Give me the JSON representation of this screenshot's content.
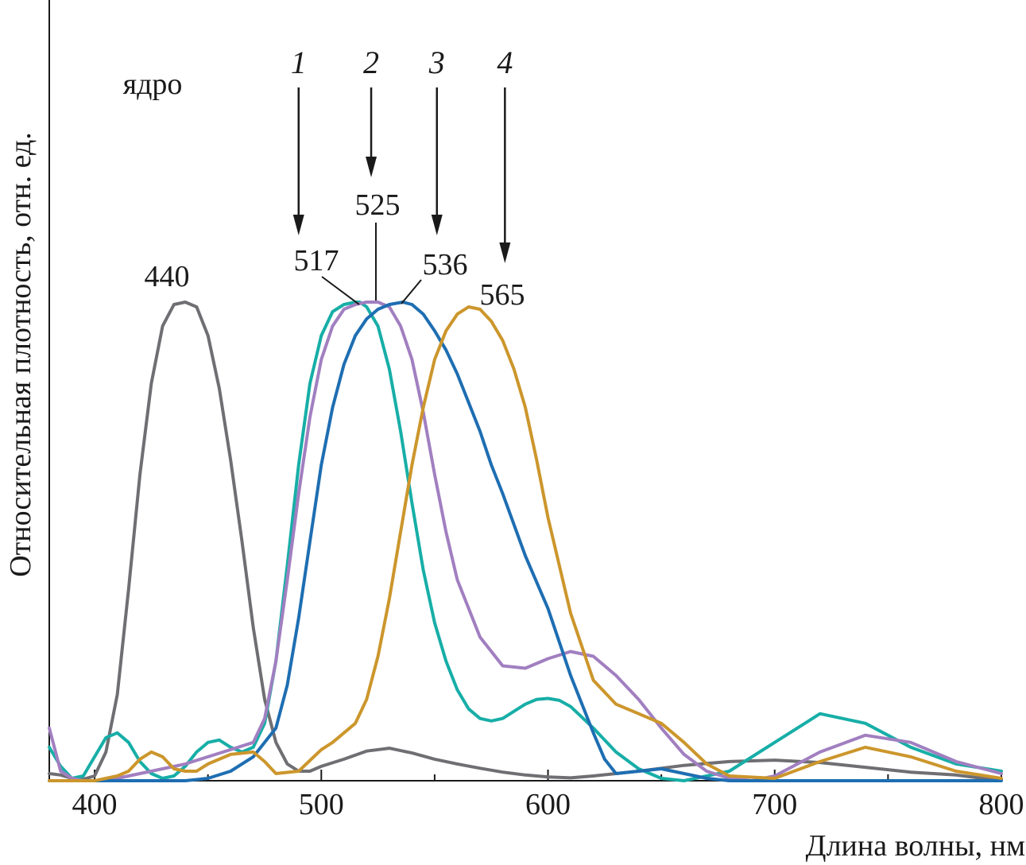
{
  "chart_data": {
    "type": "line",
    "title": "",
    "xlabel": "Длина волны, нм",
    "ylabel": "Относительная плотность, отн. ед.",
    "xlim": [
      380,
      800
    ],
    "ylim": [
      0,
      1
    ],
    "x_ticks": [
      400,
      500,
      600,
      700,
      800
    ],
    "x_tick_labels": [
      "400",
      "500",
      "600",
      "700",
      "800"
    ],
    "x_minor_step": 50,
    "y_ticks_shown": false,
    "grid": false,
    "annotations": {
      "nucleus_label": "ядро",
      "nucleus_peak": "440",
      "peaks": [
        {
          "curve": "1",
          "value": "517",
          "x": 517
        },
        {
          "curve": "2",
          "value": "525",
          "x": 525
        },
        {
          "curve": "3",
          "value": "536",
          "x": 536
        },
        {
          "curve": "4",
          "value": "565",
          "x": 565
        }
      ],
      "arrows": [
        {
          "label": "1",
          "x": 490
        },
        {
          "label": "2",
          "x": 522
        },
        {
          "label": "3",
          "x": 551
        },
        {
          "label": "4",
          "x": 581
        }
      ]
    },
    "series": [
      {
        "name": "ядро",
        "color": "#6f6f73",
        "x": [
          380,
          385,
          390,
          395,
          400,
          405,
          410,
          415,
          420,
          425,
          430,
          435,
          440,
          445,
          450,
          455,
          460,
          465,
          470,
          475,
          480,
          485,
          490,
          495,
          500,
          510,
          520,
          530,
          540,
          550,
          560,
          570,
          580,
          590,
          600,
          610,
          620,
          640,
          660,
          680,
          700,
          720,
          740,
          760,
          780,
          790,
          800
        ],
        "y": [
          0.015,
          0.012,
          0.005,
          0.003,
          0.01,
          0.06,
          0.18,
          0.4,
          0.64,
          0.83,
          0.95,
          0.995,
          1.0,
          0.99,
          0.93,
          0.82,
          0.67,
          0.5,
          0.32,
          0.17,
          0.08,
          0.035,
          0.02,
          0.02,
          0.03,
          0.045,
          0.062,
          0.068,
          0.058,
          0.045,
          0.035,
          0.026,
          0.018,
          0.012,
          0.008,
          0.006,
          0.01,
          0.02,
          0.032,
          0.04,
          0.043,
          0.038,
          0.028,
          0.018,
          0.012,
          0.006,
          0.003
        ]
      },
      {
        "name": "1",
        "color": "#17aea7",
        "x": [
          380,
          385,
          390,
          395,
          400,
          405,
          410,
          415,
          420,
          425,
          430,
          435,
          440,
          445,
          450,
          455,
          460,
          465,
          470,
          475,
          480,
          485,
          490,
          495,
          500,
          505,
          510,
          515,
          517,
          520,
          525,
          530,
          535,
          540,
          545,
          550,
          555,
          560,
          565,
          570,
          575,
          580,
          585,
          590,
          595,
          600,
          605,
          610,
          620,
          630,
          640,
          650,
          660,
          680,
          700,
          720,
          740,
          760,
          780,
          800
        ],
        "y": [
          0.07,
          0.03,
          0.005,
          0.01,
          0.05,
          0.09,
          0.1,
          0.08,
          0.04,
          0.015,
          0.005,
          0.01,
          0.03,
          0.06,
          0.08,
          0.085,
          0.07,
          0.06,
          0.07,
          0.12,
          0.25,
          0.45,
          0.66,
          0.83,
          0.93,
          0.98,
          0.995,
          1.0,
          1.0,
          0.99,
          0.95,
          0.86,
          0.73,
          0.58,
          0.44,
          0.33,
          0.25,
          0.19,
          0.15,
          0.13,
          0.125,
          0.13,
          0.145,
          0.16,
          0.17,
          0.172,
          0.168,
          0.155,
          0.11,
          0.06,
          0.025,
          0.005,
          0.0,
          0.02,
          0.08,
          0.14,
          0.12,
          0.07,
          0.035,
          0.02
        ]
      },
      {
        "name": "2",
        "color": "#a17fc0",
        "x": [
          380,
          385,
          390,
          395,
          400,
          410,
          420,
          430,
          440,
          450,
          460,
          470,
          475,
          480,
          485,
          490,
          495,
          500,
          505,
          510,
          515,
          520,
          525,
          530,
          535,
          540,
          545,
          550,
          555,
          560,
          570,
          580,
          590,
          600,
          610,
          620,
          630,
          640,
          650,
          660,
          670,
          680,
          690,
          700,
          720,
          740,
          760,
          780,
          800
        ],
        "y": [
          0.11,
          0.02,
          0.005,
          0.0,
          0.0,
          0.005,
          0.015,
          0.025,
          0.035,
          0.05,
          0.065,
          0.08,
          0.13,
          0.25,
          0.42,
          0.6,
          0.76,
          0.88,
          0.95,
          0.985,
          0.995,
          1.0,
          1.0,
          0.99,
          0.95,
          0.88,
          0.77,
          0.64,
          0.52,
          0.42,
          0.3,
          0.24,
          0.235,
          0.255,
          0.27,
          0.26,
          0.22,
          0.17,
          0.11,
          0.055,
          0.02,
          0.005,
          0.0,
          0.01,
          0.06,
          0.095,
          0.08,
          0.04,
          0.015
        ]
      },
      {
        "name": "3",
        "color": "#1e6eb2",
        "x": [
          380,
          390,
          400,
          410,
          420,
          430,
          440,
          450,
          460,
          470,
          480,
          485,
          490,
          495,
          500,
          505,
          510,
          515,
          520,
          525,
          530,
          536,
          540,
          545,
          550,
          555,
          560,
          565,
          570,
          575,
          580,
          590,
          600,
          610,
          620,
          625,
          630,
          640,
          650,
          660,
          670,
          680,
          700,
          720,
          740,
          760,
          780,
          800
        ],
        "y": [
          0.0,
          0.0,
          0.0,
          0.0,
          0.0,
          0.0,
          0.0,
          0.005,
          0.02,
          0.05,
          0.11,
          0.2,
          0.34,
          0.5,
          0.66,
          0.78,
          0.87,
          0.93,
          0.965,
          0.985,
          0.995,
          1.0,
          0.995,
          0.975,
          0.94,
          0.9,
          0.85,
          0.79,
          0.73,
          0.66,
          0.6,
          0.47,
          0.36,
          0.22,
          0.1,
          0.045,
          0.015,
          0.02,
          0.025,
          0.015,
          0.005,
          0.0,
          0.0,
          0.0,
          0.0,
          0.0,
          0.0,
          0.0
        ]
      },
      {
        "name": "4",
        "color": "#cc962c",
        "x": [
          380,
          390,
          400,
          405,
          410,
          415,
          420,
          425,
          430,
          435,
          440,
          445,
          450,
          460,
          470,
          475,
          480,
          490,
          500,
          505,
          510,
          515,
          520,
          525,
          530,
          535,
          540,
          545,
          550,
          555,
          560,
          565,
          570,
          575,
          580,
          585,
          590,
          595,
          600,
          610,
          620,
          630,
          640,
          650,
          660,
          670,
          680,
          700,
          720,
          740,
          760,
          780,
          800
        ],
        "y": [
          0.0,
          0.0,
          0.0,
          0.005,
          0.01,
          0.02,
          0.045,
          0.06,
          0.05,
          0.025,
          0.02,
          0.02,
          0.035,
          0.055,
          0.06,
          0.04,
          0.015,
          0.02,
          0.065,
          0.08,
          0.1,
          0.12,
          0.17,
          0.26,
          0.38,
          0.52,
          0.66,
          0.78,
          0.88,
          0.94,
          0.975,
          0.99,
          0.985,
          0.96,
          0.92,
          0.86,
          0.78,
          0.67,
          0.55,
          0.35,
          0.21,
          0.16,
          0.14,
          0.12,
          0.08,
          0.035,
          0.01,
          0.005,
          0.04,
          0.07,
          0.05,
          0.02,
          0.005
        ]
      }
    ]
  }
}
